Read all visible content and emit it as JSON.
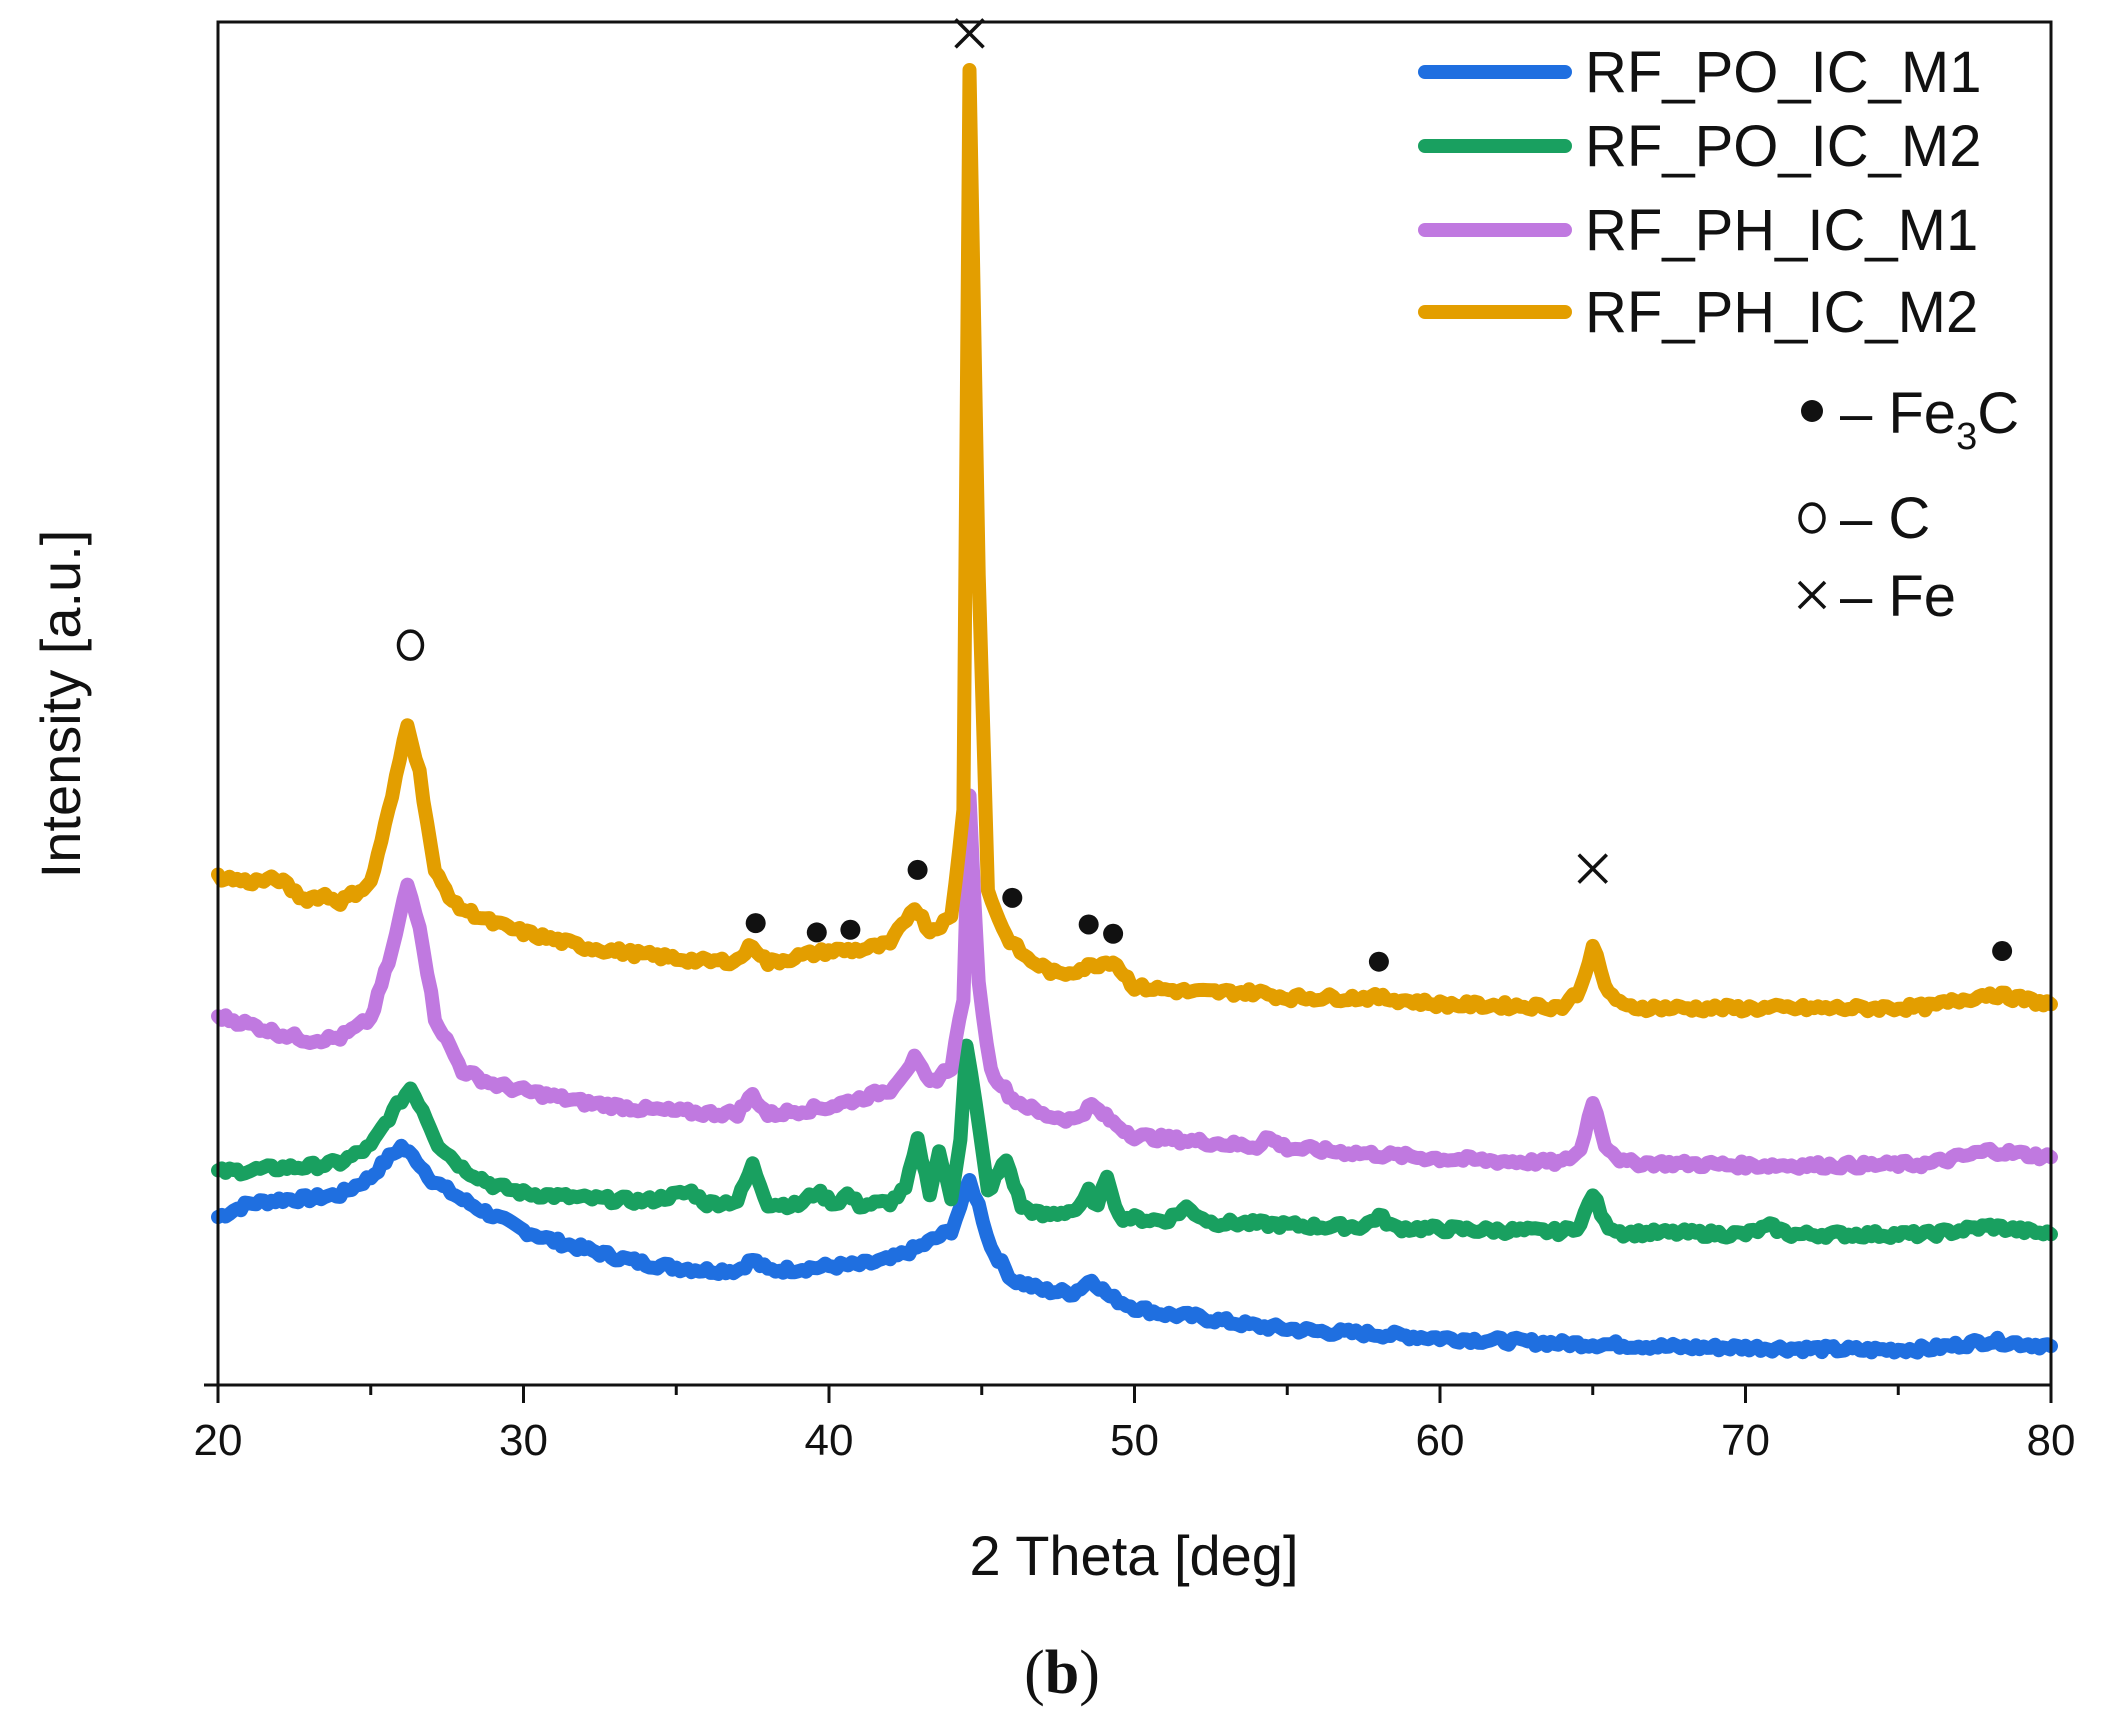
{
  "chart_data": {
    "type": "line",
    "title": "",
    "xlabel": "2 Theta [deg]",
    "ylabel": "Intensity [a.u.]",
    "panel_label": [
      "(",
      "b",
      ")"
    ],
    "xlim": [
      20,
      80
    ],
    "ylim": [
      0,
      100
    ],
    "xticks": [
      "20",
      "30",
      "40",
      "50",
      "60",
      "70",
      "80"
    ],
    "yticks_shown": false,
    "grid": false,
    "legend_position": "top-right",
    "series": [
      {
        "name": "RF_PO_IC_M1",
        "color": "#1f6fe0",
        "points": [
          [
            20,
            11.5
          ],
          [
            21,
            12.5
          ],
          [
            22,
            12.8
          ],
          [
            23,
            12.9
          ],
          [
            24,
            13.2
          ],
          [
            25,
            14.5
          ],
          [
            25.6,
            16
          ],
          [
            26,
            16.8
          ],
          [
            26.5,
            15.8
          ],
          [
            27,
            14.3
          ],
          [
            28,
            12.8
          ],
          [
            29,
            11.6
          ],
          [
            30,
            10.5
          ],
          [
            31,
            9.7
          ],
          [
            32,
            9.1
          ],
          [
            33,
            8.5
          ],
          [
            34,
            8.0
          ],
          [
            35,
            7.7
          ],
          [
            36,
            7.5
          ],
          [
            37,
            7.5
          ],
          [
            37.5,
            8.3
          ],
          [
            38,
            7.5
          ],
          [
            39,
            7.6
          ],
          [
            40,
            7.8
          ],
          [
            41,
            7.9
          ],
          [
            42,
            8.3
          ],
          [
            43,
            9.3
          ],
          [
            44,
            10.5
          ],
          [
            44.3,
            12.3
          ],
          [
            44.6,
            14.2
          ],
          [
            44.9,
            12.4
          ],
          [
            45.3,
            9.2
          ],
          [
            46,
            6.8
          ],
          [
            47,
            6.0
          ],
          [
            48,
            5.8
          ],
          [
            48.6,
            6.8
          ],
          [
            49.2,
            5.5
          ],
          [
            50,
            4.7
          ],
          [
            51,
            4.2
          ],
          [
            52,
            4.0
          ],
          [
            54,
            3.3
          ],
          [
            56,
            2.9
          ],
          [
            58,
            2.7
          ],
          [
            60,
            2.4
          ],
          [
            62,
            2.2
          ],
          [
            64,
            2.0
          ],
          [
            66,
            1.9
          ],
          [
            68,
            1.7
          ],
          [
            70,
            1.7
          ],
          [
            72,
            1.6
          ],
          [
            74,
            1.5
          ],
          [
            76,
            1.6
          ],
          [
            78,
            2.2
          ],
          [
            80,
            1.8
          ]
        ]
      },
      {
        "name": "RF_PO_IC_M2",
        "color": "#19a060",
        "points": [
          [
            20,
            14.9
          ],
          [
            21,
            15.0
          ],
          [
            22,
            15.2
          ],
          [
            23,
            15.3
          ],
          [
            24,
            15.6
          ],
          [
            25,
            16.8
          ],
          [
            25.6,
            19.0
          ],
          [
            26,
            20.3
          ],
          [
            26.3,
            21.2
          ],
          [
            26.7,
            19.6
          ],
          [
            27.2,
            17.0
          ],
          [
            28,
            15.2
          ],
          [
            29,
            13.9
          ],
          [
            30,
            13.3
          ],
          [
            32,
            12.9
          ],
          [
            34,
            12.7
          ],
          [
            35.5,
            13.4
          ],
          [
            36,
            12.5
          ],
          [
            37,
            12.7
          ],
          [
            37.5,
            15.4
          ],
          [
            38,
            12.5
          ],
          [
            39,
            12.4
          ],
          [
            39.6,
            13.4
          ],
          [
            40.2,
            12.5
          ],
          [
            40.6,
            13.2
          ],
          [
            41,
            12.4
          ],
          [
            42,
            12.6
          ],
          [
            42.5,
            13.6
          ],
          [
            42.9,
            17.2
          ],
          [
            43.3,
            13.4
          ],
          [
            43.6,
            16.4
          ],
          [
            44,
            12.8
          ],
          [
            44.3,
            17.5
          ],
          [
            44.5,
            24.5
          ],
          [
            44.8,
            20.0
          ],
          [
            45.2,
            13.4
          ],
          [
            45.8,
            15.8
          ],
          [
            46.3,
            12.3
          ],
          [
            47,
            11.6
          ],
          [
            48.2,
            12.1
          ],
          [
            48.5,
            13.4
          ],
          [
            48.8,
            12.2
          ],
          [
            49.1,
            14.7
          ],
          [
            49.5,
            11.5
          ],
          [
            51,
            11.2
          ],
          [
            51.7,
            12.2
          ],
          [
            52.5,
            11.1
          ],
          [
            54,
            11.0
          ],
          [
            56,
            10.8
          ],
          [
            57.5,
            10.8
          ],
          [
            58,
            11.6
          ],
          [
            58.5,
            10.7
          ],
          [
            60,
            10.6
          ],
          [
            62,
            10.5
          ],
          [
            64,
            10.4
          ],
          [
            64.6,
            10.9
          ],
          [
            65,
            13.3
          ],
          [
            65.4,
            11.0
          ],
          [
            66,
            10.3
          ],
          [
            68,
            10.3
          ],
          [
            70,
            10.2
          ],
          [
            70.8,
            10.8
          ],
          [
            71.5,
            10.2
          ],
          [
            74,
            10.2
          ],
          [
            76,
            10.2
          ],
          [
            78,
            10.8
          ],
          [
            80,
            10.2
          ]
        ]
      },
      {
        "name": "RF_PH_IC_M1",
        "color": "#c079e0",
        "points": [
          [
            20,
            26.6
          ],
          [
            21,
            26.0
          ],
          [
            22,
            25.3
          ],
          [
            23,
            24.8
          ],
          [
            24,
            25.0
          ],
          [
            25,
            26.4
          ],
          [
            25.7,
            31.5
          ],
          [
            26.2,
            36.5
          ],
          [
            26.6,
            33.5
          ],
          [
            27.1,
            26.5
          ],
          [
            28,
            22.5
          ],
          [
            29,
            21.5
          ],
          [
            30,
            21.0
          ],
          [
            32,
            20.1
          ],
          [
            34,
            19.6
          ],
          [
            36,
            19.3
          ],
          [
            37,
            19.3
          ],
          [
            37.5,
            20.7
          ],
          [
            38,
            19.2
          ],
          [
            39,
            19.5
          ],
          [
            40,
            19.8
          ],
          [
            41,
            20.4
          ],
          [
            42,
            21.1
          ],
          [
            42.8,
            23.4
          ],
          [
            43.3,
            21.5
          ],
          [
            44,
            22.8
          ],
          [
            44.4,
            28.0
          ],
          [
            44.6,
            43.0
          ],
          [
            44.9,
            29.0
          ],
          [
            45.3,
            22.5
          ],
          [
            46,
            20.4
          ],
          [
            47,
            19.2
          ],
          [
            48,
            18.8
          ],
          [
            48.6,
            19.9
          ],
          [
            49.3,
            18.6
          ],
          [
            50,
            17.6
          ],
          [
            52,
            17.2
          ],
          [
            54,
            16.8
          ],
          [
            54.3,
            17.5
          ],
          [
            55,
            16.7
          ],
          [
            58,
            16.2
          ],
          [
            60,
            15.9
          ],
          [
            62,
            15.7
          ],
          [
            64,
            15.6
          ],
          [
            64.6,
            16.5
          ],
          [
            65,
            20.3
          ],
          [
            65.4,
            17.0
          ],
          [
            66,
            15.6
          ],
          [
            68,
            15.5
          ],
          [
            70,
            15.4
          ],
          [
            72,
            15.4
          ],
          [
            74,
            15.4
          ],
          [
            76,
            15.5
          ],
          [
            78,
            16.5
          ],
          [
            80,
            16.0
          ]
        ]
      },
      {
        "name": "RF_PH_IC_M2",
        "color": "#e39e00",
        "points": [
          [
            20,
            37.1
          ],
          [
            21,
            36.7
          ],
          [
            22,
            36.9
          ],
          [
            22.8,
            35.4
          ],
          [
            23.5,
            35.7
          ],
          [
            24,
            35.2
          ],
          [
            25,
            36.6
          ],
          [
            25.7,
            43.1
          ],
          [
            26.2,
            48.7
          ],
          [
            26.6,
            44.9
          ],
          [
            27.1,
            37.4
          ],
          [
            27.8,
            34.9
          ],
          [
            29,
            33.6
          ],
          [
            30,
            32.9
          ],
          [
            32,
            31.8
          ],
          [
            34,
            31.2
          ],
          [
            36,
            30.7
          ],
          [
            37,
            30.8
          ],
          [
            37.5,
            32.0
          ],
          [
            38,
            30.6
          ],
          [
            39,
            31.1
          ],
          [
            40,
            31.5
          ],
          [
            41,
            31.6
          ],
          [
            42,
            32.0
          ],
          [
            42.8,
            34.9
          ],
          [
            43.3,
            33.0
          ],
          [
            44,
            34.0
          ],
          [
            44.4,
            42.0
          ],
          [
            44.6,
            98.0
          ],
          [
            44.9,
            60.0
          ],
          [
            45.2,
            36.0
          ],
          [
            45.8,
            32.6
          ],
          [
            46.5,
            30.9
          ],
          [
            47.5,
            29.7
          ],
          [
            48.6,
            30.4
          ],
          [
            49.3,
            30.8
          ],
          [
            50,
            28.8
          ],
          [
            52,
            28.4
          ],
          [
            54,
            28.4
          ],
          [
            55,
            28.0
          ],
          [
            58,
            28.0
          ],
          [
            60,
            27.5
          ],
          [
            62,
            27.4
          ],
          [
            64,
            27.3
          ],
          [
            64.6,
            28.6
          ],
          [
            65,
            32.0
          ],
          [
            65.4,
            28.8
          ],
          [
            66,
            27.3
          ],
          [
            68,
            27.2
          ],
          [
            70,
            27.2
          ],
          [
            72,
            27.2
          ],
          [
            74,
            27.2
          ],
          [
            76,
            27.3
          ],
          [
            78,
            28.3
          ],
          [
            80,
            27.5
          ]
        ]
      }
    ],
    "phase_markers": [
      {
        "phase": "C",
        "symbol": "o",
        "points": [
          [
            26.3,
            54.5
          ]
        ]
      },
      {
        "phase": "Fe",
        "symbol": "x",
        "points": [
          [
            44.6,
            100.5
          ],
          [
            65.0,
            37.7
          ]
        ]
      },
      {
        "phase": "Fe3C",
        "symbol": "dot",
        "points": [
          [
            37.6,
            33.6
          ],
          [
            39.6,
            32.9
          ],
          [
            40.7,
            33.1
          ],
          [
            42.9,
            37.6
          ],
          [
            46.0,
            35.5
          ],
          [
            48.5,
            33.5
          ],
          [
            49.3,
            32.8
          ],
          [
            58.0,
            30.7
          ],
          [
            78.4,
            31.5
          ]
        ]
      }
    ],
    "marker_legend": [
      {
        "symbol": "dot",
        "label": "Fe",
        "subscript": "3",
        "label_rest": "C",
        "dash": "–"
      },
      {
        "symbol": "o",
        "label": "C",
        "subscript": "",
        "label_rest": "",
        "dash": "–"
      },
      {
        "symbol": "x",
        "label": "Fe",
        "subscript": "",
        "label_rest": "",
        "dash": "–"
      }
    ]
  }
}
